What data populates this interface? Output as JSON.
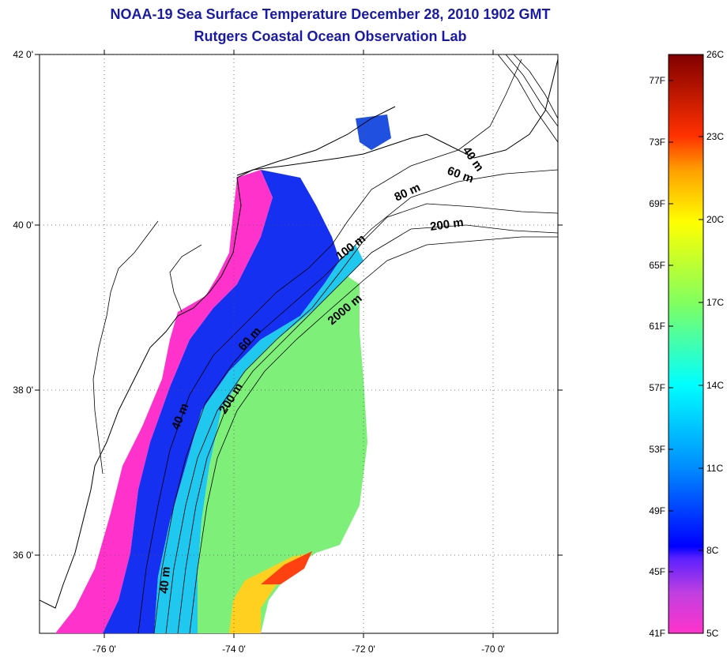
{
  "header": {
    "title": "NOAA-19 Sea Surface Temperature December 28, 2010 1902 GMT",
    "subtitle": "Rutgers Coastal Ocean Observation Lab"
  },
  "map": {
    "lon_range": [
      -77,
      -69
    ],
    "lat_range": [
      35,
      42
    ],
    "lon_ticks": [
      "-76 0'",
      "-74 0'",
      "-72 0'",
      "-70 0'"
    ],
    "lat_ticks": [
      "42 0'",
      "40 0'",
      "38 0'",
      "36 0'"
    ],
    "contour_labels": [
      "40 m",
      "60 m",
      "80 m",
      "100 m",
      "200 m",
      "2000 m",
      "60 m",
      "40 m",
      "200 m",
      "40 m"
    ]
  },
  "colorbar": {
    "fahrenheit_labels": [
      "77F",
      "73F",
      "69F",
      "65F",
      "61F",
      "57F",
      "53F",
      "49F",
      "45F",
      "41F"
    ],
    "celsius_labels": [
      "26C",
      "23C",
      "20C",
      "17C",
      "14C",
      "11C",
      "8C",
      "5C"
    ],
    "range_celsius": [
      5,
      26
    ],
    "colors": [
      "#ff33cc",
      "#8a2be2",
      "#0000ff",
      "#0080ff",
      "#00ffff",
      "#7fff7f",
      "#ffff00",
      "#ff8000",
      "#ff0000",
      "#800000"
    ]
  }
}
